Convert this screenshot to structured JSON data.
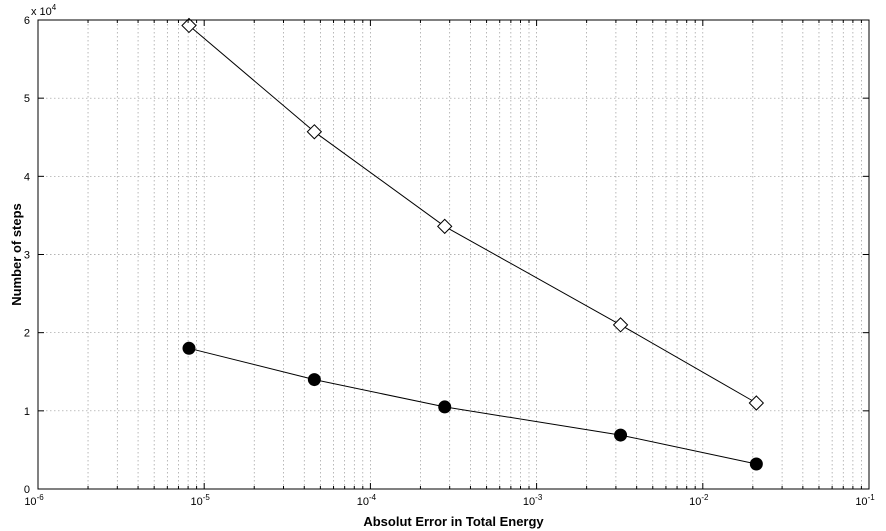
{
  "chart_data": {
    "type": "line",
    "xlabel": "Absolut Error in Total Energy",
    "ylabel": "Number of steps",
    "xscale": "log",
    "xlim": [
      1e-06,
      0.1
    ],
    "ylim": [
      0,
      60000
    ],
    "y_exponent_label": "x 10",
    "y_exponent_power": "4",
    "grid": true,
    "x_ticks": [
      {
        "value": 1e-06,
        "base": "10",
        "exp": "-6"
      },
      {
        "value": 1e-05,
        "base": "10",
        "exp": "-5"
      },
      {
        "value": 0.0001,
        "base": "10",
        "exp": "-4"
      },
      {
        "value": 0.001,
        "base": "10",
        "exp": "-3"
      },
      {
        "value": 0.01,
        "base": "10",
        "exp": "-2"
      },
      {
        "value": 0.1,
        "base": "10",
        "exp": "-1"
      }
    ],
    "y_ticks": [
      {
        "value": 0,
        "label": "0"
      },
      {
        "value": 10000,
        "label": "1"
      },
      {
        "value": 20000,
        "label": "2"
      },
      {
        "value": 30000,
        "label": "3"
      },
      {
        "value": 40000,
        "label": "4"
      },
      {
        "value": 50000,
        "label": "5"
      },
      {
        "value": 60000,
        "label": "6"
      }
    ],
    "series": [
      {
        "marker": "diamond-open",
        "color": "#000000",
        "x": [
          8.1e-06,
          4.6e-05,
          0.00028,
          0.0032,
          0.021
        ],
        "y": [
          59300,
          45700,
          33600,
          21000,
          11000
        ]
      },
      {
        "marker": "circle-filled",
        "color": "#000000",
        "x": [
          8.1e-06,
          4.6e-05,
          0.00028,
          0.0032,
          0.021
        ],
        "y": [
          18000,
          14000,
          10500,
          6900,
          3200
        ]
      }
    ]
  }
}
